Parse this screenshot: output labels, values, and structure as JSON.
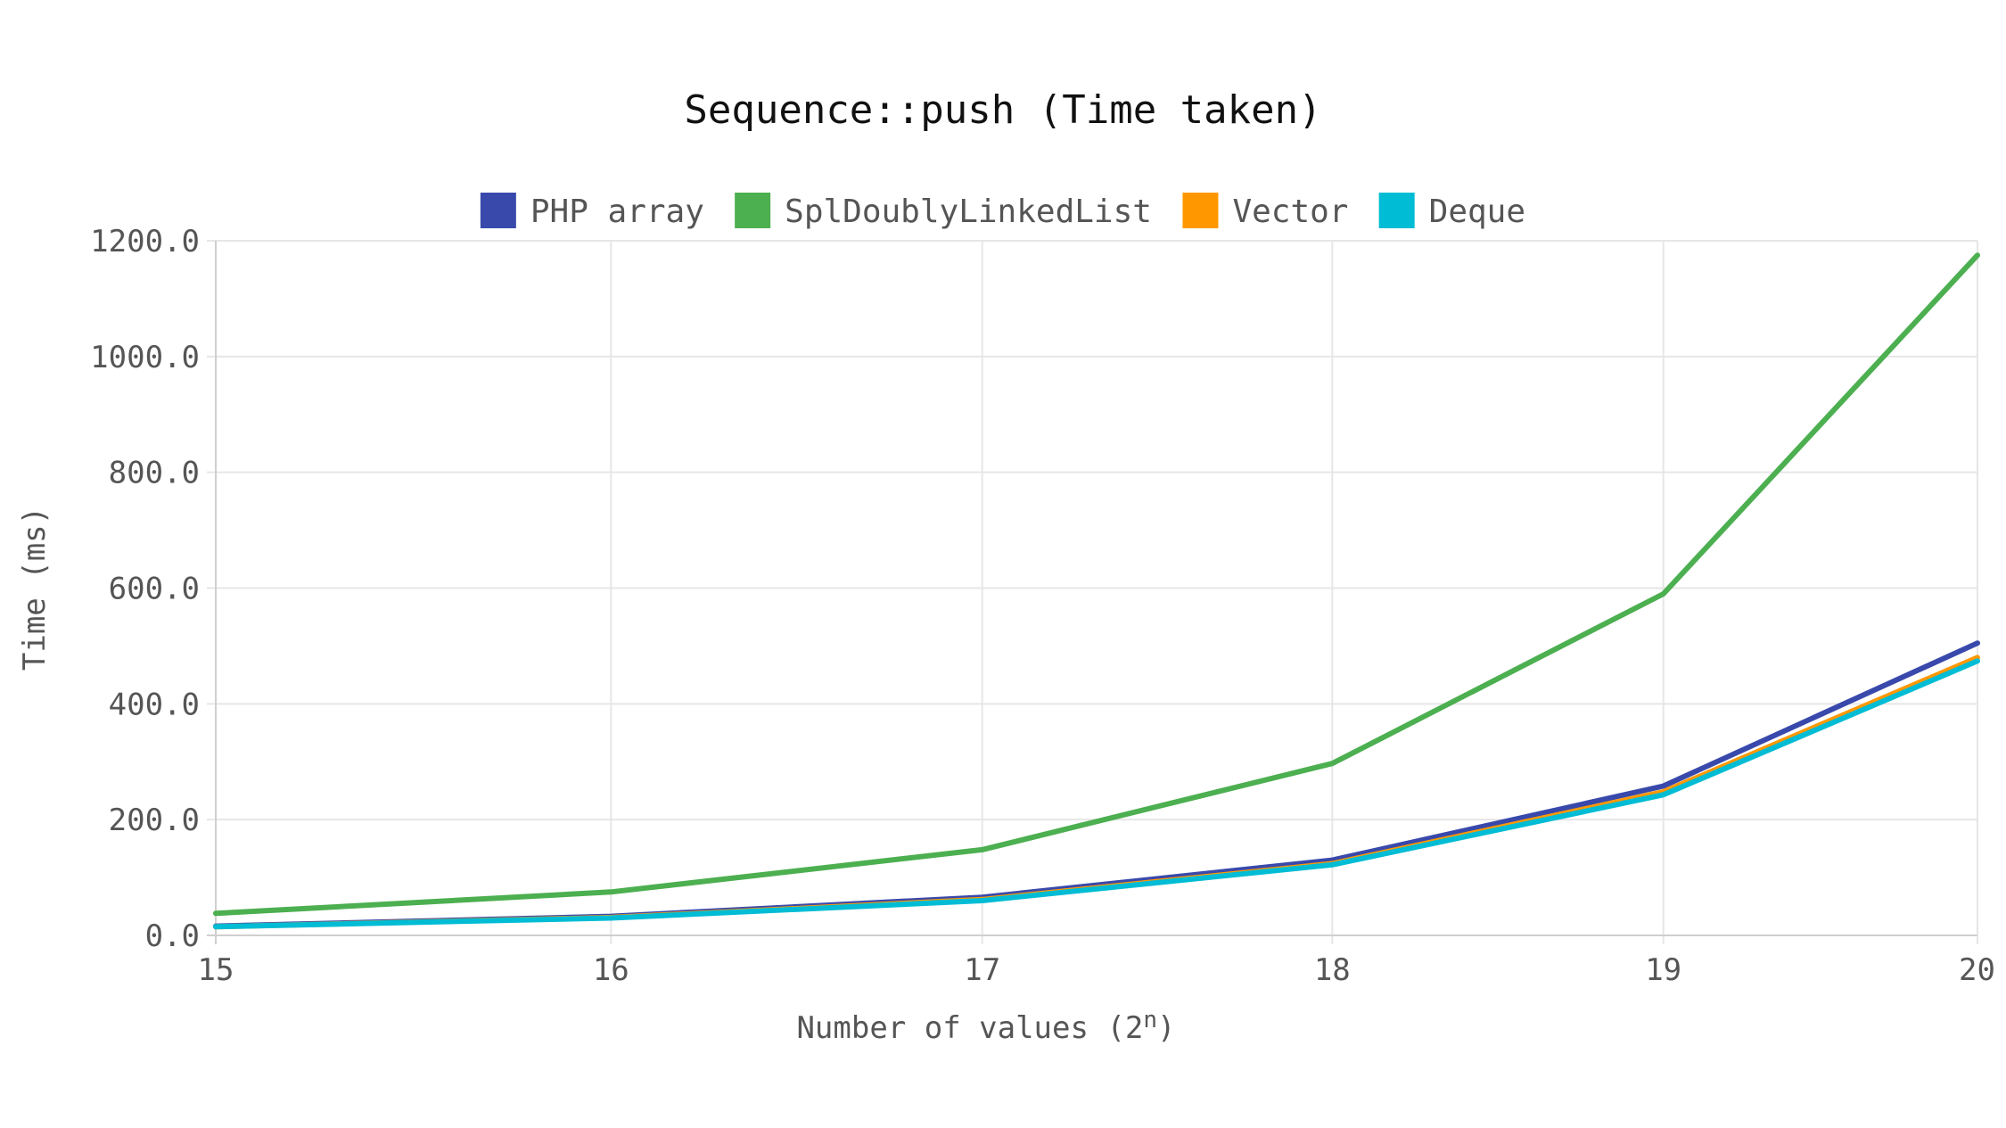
{
  "chart_data": {
    "type": "line",
    "title": "Sequence::push (Time taken)",
    "xlabel": "Number of values (2",
    "xlabel_sup": "n",
    "xlabel_end": ")",
    "ylabel": "Time (ms)",
    "x": [
      15,
      16,
      17,
      18,
      19,
      20
    ],
    "xlim": [
      15,
      20
    ],
    "x_scale": "log",
    "ylim": [
      0,
      1200
    ],
    "y_ticks": [
      0,
      200,
      400,
      600,
      800,
      1000,
      1200
    ],
    "y_tick_labels": [
      "0.0",
      "200.0",
      "400.0",
      "600.0",
      "800.0",
      "1000.0",
      "1200.0"
    ],
    "grid": true,
    "legend_position": "top",
    "series": [
      {
        "name": "PHP array",
        "color": "#3949ab",
        "values": [
          16,
          33,
          66,
          130,
          258,
          505
        ]
      },
      {
        "name": "SplDoublyLinkedList",
        "color": "#4caf50",
        "values": [
          38,
          75,
          148,
          297,
          590,
          1175
        ]
      },
      {
        "name": "Vector",
        "color": "#ff9800",
        "values": [
          15,
          31,
          62,
          124,
          248,
          480
        ]
      },
      {
        "name": "Deque",
        "color": "#00bcd4",
        "values": [
          15,
          30,
          60,
          122,
          243,
          474
        ]
      }
    ]
  }
}
